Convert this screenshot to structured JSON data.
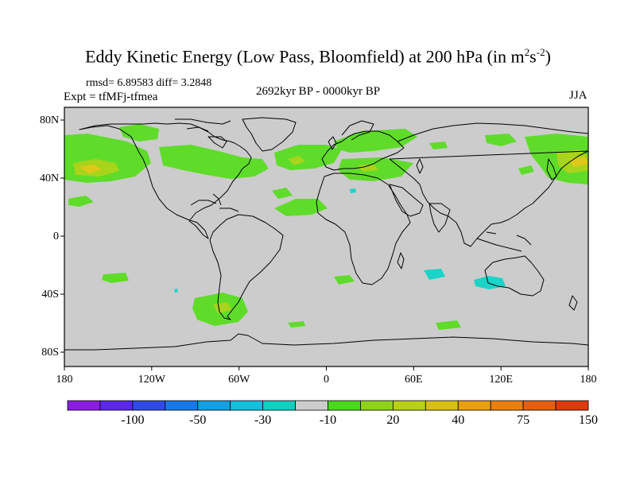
{
  "title": "Eddy Kinetic Energy (Low Pass, Bloomfield) at 200 hPa (in m",
  "title_sup1": "2",
  "title_mid": "s",
  "title_sup2": "-2",
  "title_end": ")",
  "stats": "rmsd= 6.89583 diff= 3.2848",
  "experiment": "Expt = tfMFj-tfmea",
  "period": "2692kyr BP - 0000kyr BP",
  "season": "JJA",
  "lat_labels": [
    "80N",
    "40N",
    "0",
    "40S",
    "80S"
  ],
  "lon_labels": [
    "180",
    "120W",
    "60W",
    "0",
    "60E",
    "120E",
    "180"
  ],
  "colorbar": {
    "labels": [
      "-100",
      "-50",
      "-30",
      "-10",
      "20",
      "40",
      "75",
      "150"
    ],
    "colors": [
      "#8a1ee0",
      "#5a28e6",
      "#2f4ae6",
      "#1a78e6",
      "#14a0e0",
      "#12c0dc",
      "#10d0c0",
      "#cccccc",
      "#4cd61e",
      "#8ed21c",
      "#b8d018",
      "#d8c012",
      "#e8a010",
      "#e88010",
      "#e46010",
      "#dc3a10"
    ]
  },
  "colors": {
    "map_background": "#cccccc",
    "positive_light": "#5fdc2a",
    "positive_mid": "#a8d41c",
    "positive_high": "#e0c81a",
    "negative": "#1ad4c8"
  }
}
